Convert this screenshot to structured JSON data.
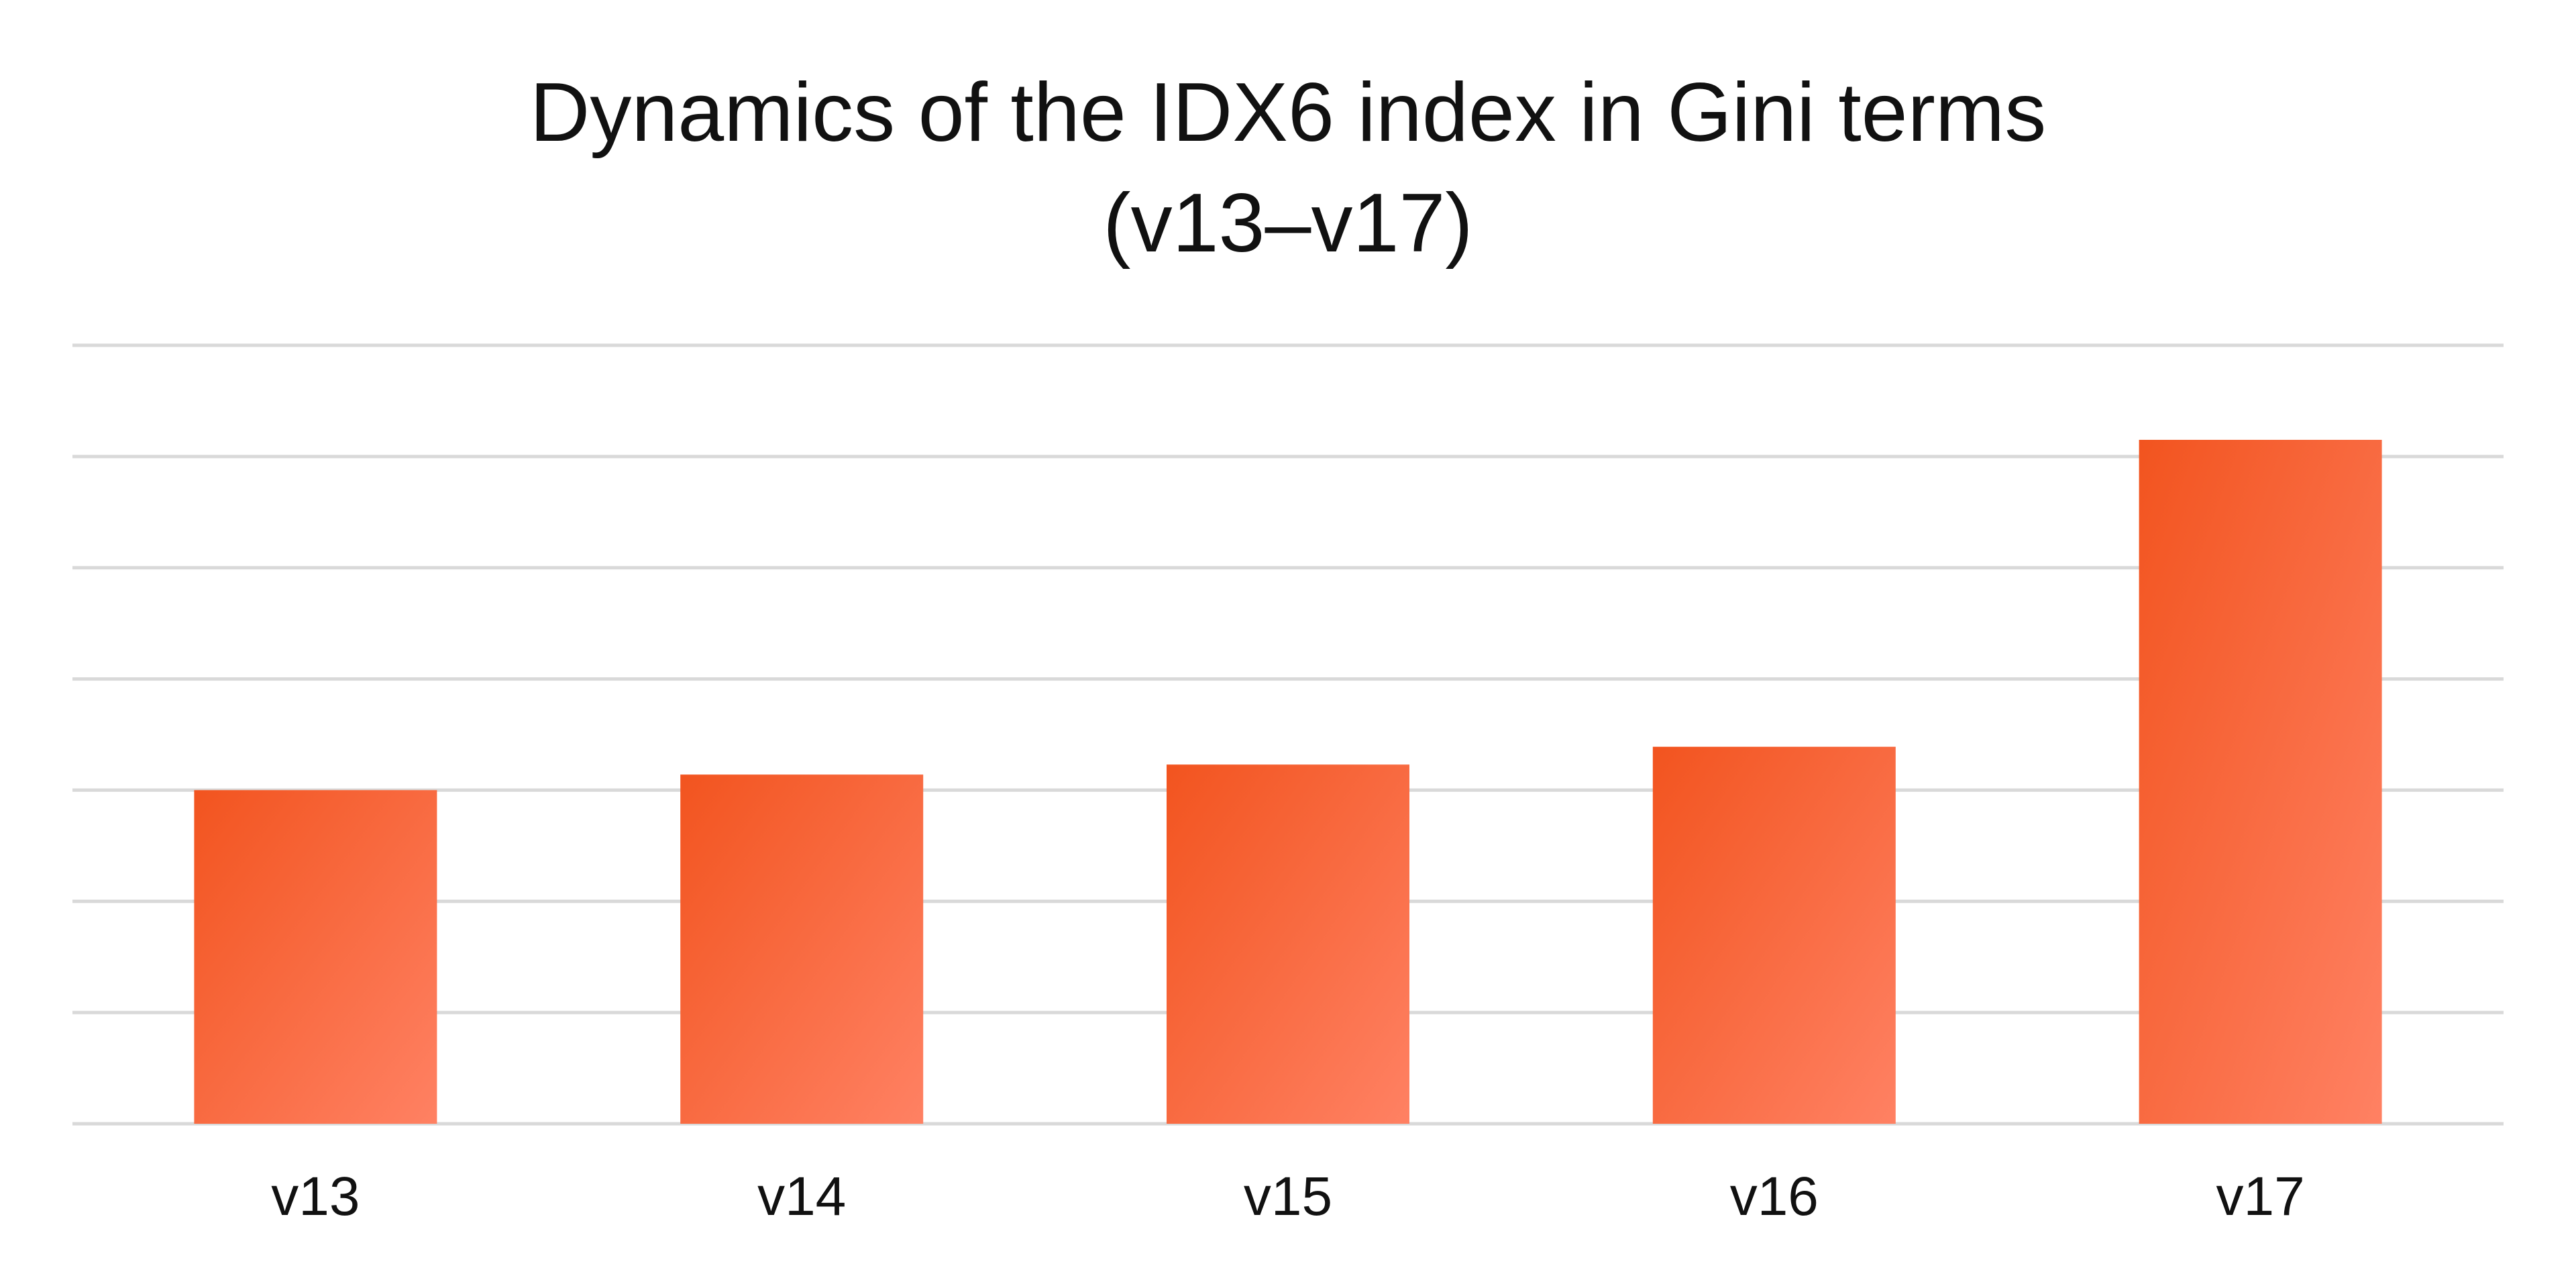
{
  "chart_data": {
    "type": "bar",
    "title": "Dynamics of the IDX6 index in Gini terms",
    "subtitle": "(v13–v17)",
    "categories": [
      "v13",
      "v14",
      "v15",
      "v16",
      "v17"
    ],
    "values": [
      0.3,
      0.314,
      0.323,
      0.339,
      0.615
    ],
    "xlabel": "",
    "ylabel": "",
    "ylim": [
      0,
      0.7
    ],
    "y_gridlines": [
      0,
      0.1,
      0.2,
      0.3,
      0.4,
      0.5,
      0.6,
      0.7
    ],
    "y_tick_labels_visible": false,
    "grid": true,
    "legend": "none",
    "colors": {
      "bar_gradient_start": "#f2541f",
      "bar_gradient_end": "#ff8163",
      "gridline": "#d9d9d9",
      "text": "#111111"
    }
  }
}
